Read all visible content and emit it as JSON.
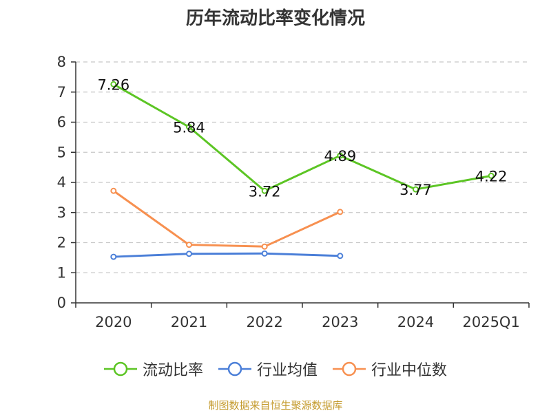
{
  "chart_data": {
    "type": "line",
    "title": "历年流动比率变化情况",
    "categories": [
      "2020",
      "2021",
      "2022",
      "2023",
      "2024",
      "2025Q1"
    ],
    "ylim": [
      0,
      8
    ],
    "yticks": [
      0,
      1,
      2,
      3,
      4,
      5,
      6,
      7,
      8
    ],
    "grid": true,
    "legend_position": "bottom",
    "series": [
      {
        "name": "流动比率",
        "color": "#5cc524",
        "values": [
          7.26,
          5.84,
          3.72,
          4.89,
          3.77,
          4.22
        ],
        "labels": [
          "7.26",
          "5.84",
          "3.72",
          "4.89",
          "3.77",
          "4.22"
        ]
      },
      {
        "name": "行业均值",
        "color": "#4b7fd8",
        "values": [
          1.53,
          1.63,
          1.64,
          1.56,
          null,
          null
        ]
      },
      {
        "name": "行业中位数",
        "color": "#f79050",
        "values": [
          3.72,
          1.93,
          1.87,
          3.02,
          null,
          null
        ]
      }
    ]
  },
  "source": "制图数据来自恒生聚源数据库"
}
